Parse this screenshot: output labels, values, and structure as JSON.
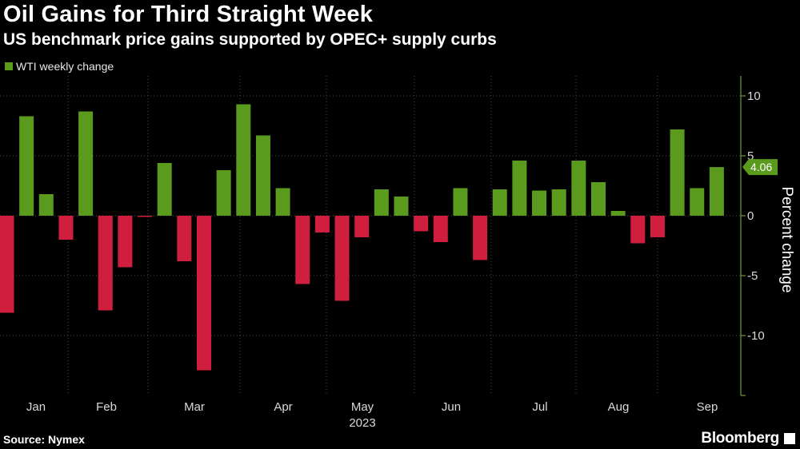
{
  "header": {
    "title": "Oil Gains for Third Straight Week",
    "subtitle": "US benchmark price gains supported by OPEC+ supply curbs"
  },
  "footer": {
    "source": "Source: Nymex",
    "brand": "Bloomberg"
  },
  "colors": {
    "positive": "#5a9a1d",
    "negative": "#cf1e3e",
    "background": "#000000",
    "grid": "#4a4a4a",
    "axis": "#6f9a3a"
  },
  "chart_data": {
    "type": "bar",
    "title": "Oil Gains for Third Straight Week",
    "subtitle": "US benchmark price gains supported by OPEC+ supply curbs",
    "ylabel": "Percent change",
    "ylim": [
      -15,
      10
    ],
    "yticks": [
      10,
      5,
      0,
      -5,
      -10
    ],
    "month_labels": [
      "Jan",
      "Feb",
      "Mar",
      "Apr",
      "May",
      "Jun",
      "Jul",
      "Aug",
      "Sep"
    ],
    "year_label": "2023",
    "grid": true,
    "legend_position": "top-left",
    "series": [
      {
        "name": "WTI weekly change",
        "values": [
          -8.1,
          8.3,
          1.8,
          -2.0,
          8.7,
          -7.9,
          -4.3,
          -0.1,
          4.4,
          -3.8,
          -12.9,
          3.8,
          9.3,
          6.7,
          2.3,
          -5.7,
          -1.4,
          -7.1,
          -1.8,
          2.2,
          1.6,
          -1.3,
          -2.2,
          2.3,
          -3.7,
          2.2,
          4.6,
          2.1,
          2.2,
          4.6,
          2.8,
          0.4,
          -2.3,
          -1.8,
          7.2,
          2.3,
          4.06
        ]
      }
    ],
    "last_value_label": "4.06"
  }
}
